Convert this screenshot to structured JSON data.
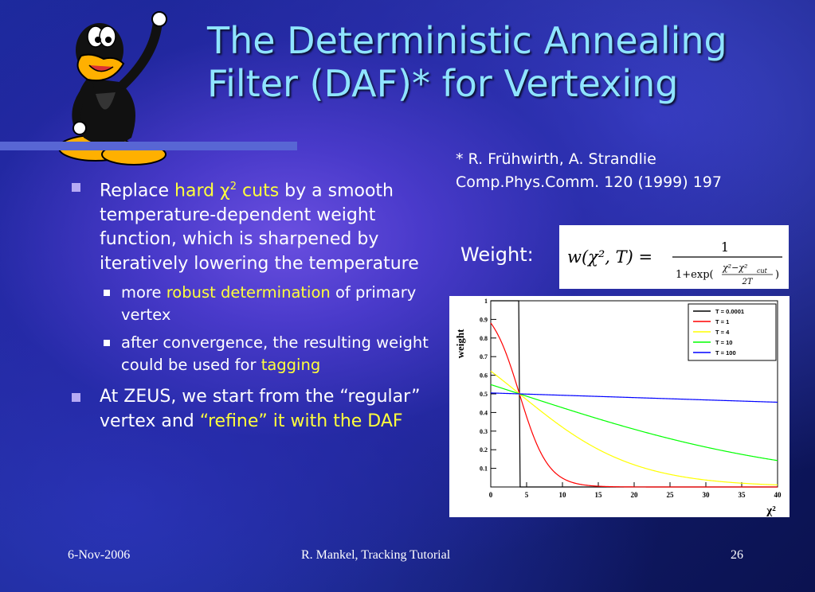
{
  "title_line1": "The Deterministic Annealing",
  "title_line2": "Filter (DAF)* for Vertexing",
  "reference": {
    "line1": "* R. Frühwirth, A. Strandlie",
    "line2": "Comp.Phys.Comm. 120 (1999) 197"
  },
  "bullets": {
    "b1_prefix": "Replace ",
    "b1_hl": "hard χ",
    "b1_sup": "2",
    "b1_hl2": " cuts",
    "b1_rest": " by a smooth temperature-dependent weight function, which is sharpened by iteratively lowering the temperature",
    "s1_prefix": "more ",
    "s1_hl": "robust determination",
    "s1_rest": " of primary vertex",
    "s2_text": "after convergence, the resulting weight could be used for ",
    "s2_hl": "tagging",
    "b2_text": "At ZEUS, we start from the “regular” vertex and ",
    "b2_hl": "“refine” it with the DAF"
  },
  "weight_label": "Weight:",
  "formula": {
    "lhs": "w(χ², T) =",
    "numerator": "1",
    "den_prefix": "1+exp(",
    "inner_num": "χ²−χ²",
    "inner_sub": "cut",
    "inner_den": "2T",
    "den_suffix": ")"
  },
  "chart_data": {
    "type": "line",
    "ylabel": "weight",
    "xlabel": "χ²",
    "xlim": [
      0,
      40
    ],
    "ylim": [
      0,
      1
    ],
    "x_ticks": [
      0,
      5,
      10,
      15,
      20,
      25,
      30,
      35,
      40
    ],
    "y_ticks": [
      0.1,
      0.2,
      0.3,
      0.4,
      0.5,
      0.6,
      0.7,
      0.8,
      0.9,
      1
    ],
    "chi2_cut": 4,
    "series": [
      {
        "name": "T = 0.0001",
        "T": 0.0001,
        "color": "#000000"
      },
      {
        "name": "T = 1",
        "T": 1,
        "color": "#ff0000"
      },
      {
        "name": "T = 4",
        "T": 4,
        "color": "#ffff00"
      },
      {
        "name": "T = 10",
        "T": 10,
        "color": "#00ff00"
      },
      {
        "name": "T = 100",
        "T": 100,
        "color": "#0000ff"
      }
    ],
    "legend_placement": "top-right"
  },
  "footer": {
    "date": "6-Nov-2006",
    "center": "R. Mankel, Tracking Tutorial",
    "page": "26"
  }
}
